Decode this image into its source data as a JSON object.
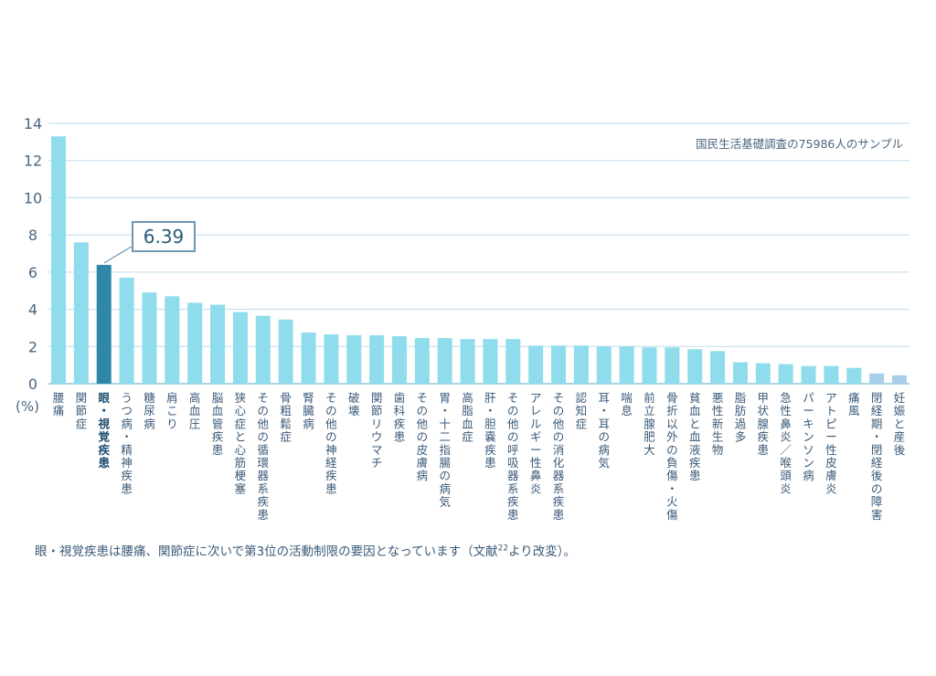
{
  "chart_data": {
    "type": "bar",
    "unit_label": "(%)",
    "source_note": "国民生活基礎調査の75986人のサンプル",
    "ylim": [
      0,
      14
    ],
    "yticks": [
      "0",
      "2",
      "4",
      "6",
      "8",
      "10",
      "12",
      "14"
    ],
    "grid": true,
    "highlight_index": 2,
    "highlight_value_label": "6.39",
    "bar_color": "#8fdcec",
    "highlight_color": "#2e87a8",
    "fade_color": "#a8cfe8",
    "categories": [
      "腰痛",
      "関節症",
      "眼・視覚疾患",
      "うつ病・精神疾患",
      "糖尿病",
      "肩こり",
      "高血圧",
      "脳血管疾患",
      "狭心症と心筋梗塞",
      "その他の循環器系疾患",
      "骨粗鬆症",
      "腎臓病",
      "その他の神経疾患",
      "破壊",
      "関節リウマチ",
      "歯科疾患",
      "その他の皮膚病",
      "胃・十二指腸の病気",
      "高脂血症",
      "肝・胆嚢疾患",
      "その他の呼吸器系疾患",
      "アレルギー性鼻炎",
      "その他の消化器系疾患",
      "認知症",
      "耳・耳の病気",
      "喘息",
      "前立腺肥大",
      "骨折以外の負傷・火傷",
      "貧血と血液疾患",
      "悪性新生物",
      "脂肪過多",
      "甲状腺疾患",
      "急性鼻炎／喉頭炎",
      "パーキンソン病",
      "アトピー性皮膚炎",
      "痛風",
      "閉経期・閉経後の障害",
      "妊娠と産後"
    ],
    "values": [
      13.3,
      7.6,
      6.39,
      5.7,
      4.9,
      4.7,
      4.35,
      4.25,
      3.85,
      3.65,
      3.45,
      2.75,
      2.65,
      2.6,
      2.6,
      2.55,
      2.45,
      2.45,
      2.4,
      2.4,
      2.4,
      2.05,
      2.05,
      2.05,
      2.0,
      2.0,
      1.95,
      1.95,
      1.85,
      1.75,
      1.15,
      1.1,
      1.05,
      0.95,
      0.95,
      0.85,
      0.55,
      0.45
    ],
    "faded_indices": [
      36,
      37
    ]
  },
  "caption": {
    "text_before": "眼・視覚疾患は腰痛、関節症に次いで第3位の活動制限の要因となっています（文献",
    "ref": "22",
    "text_after": "より改変）。"
  }
}
